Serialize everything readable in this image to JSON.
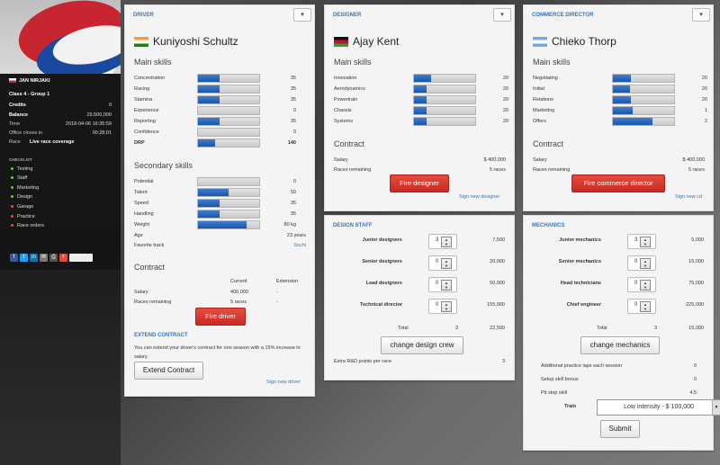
{
  "sidebar": {
    "manager_name": "JAN NIRJAKI",
    "rows": [
      {
        "k": "Class 4 - Group 1",
        "v": "",
        "bold": true
      },
      {
        "k": "Credits",
        "v": "0",
        "bold": true
      },
      {
        "k": "Balance",
        "v": "29,500,000",
        "bold": true
      },
      {
        "k": "Time",
        "v": "2018-04-06 16:35:59",
        "bold": false
      },
      {
        "k": "Office closes in",
        "v": "00:28:01",
        "bold": false
      },
      {
        "k": "Race",
        "v": "Live race coverage",
        "bold": false
      }
    ],
    "checklist_title": "CHECKLIST",
    "checklist": [
      "Testing",
      "Staff",
      "Marketing",
      "Design",
      "Garage",
      "Practice",
      "Race orders"
    ]
  },
  "driver": {
    "title": "DRIVER",
    "name": "Kuniyoshi Schultz",
    "main_skills_heading": "Main skills",
    "main_skills": [
      {
        "label": "Concentration",
        "value": "35",
        "fill": 0.35
      },
      {
        "label": "Racing",
        "value": "35",
        "fill": 0.35
      },
      {
        "label": "Stamina",
        "value": "35",
        "fill": 0.35
      },
      {
        "label": "Experience",
        "value": "0",
        "fill": 0
      },
      {
        "label": "Reporting",
        "value": "35",
        "fill": 0.35
      },
      {
        "label": "Confidence",
        "value": "0",
        "fill": 0
      },
      {
        "label": "DRP",
        "value": "140",
        "fill": 0.28,
        "bold": true
      }
    ],
    "secondary_heading": "Secondary skills",
    "secondary_skills": [
      {
        "label": "Potential",
        "value": "0",
        "fill": 0
      },
      {
        "label": "Talent",
        "value": "50",
        "fill": 0.5
      },
      {
        "label": "Speed",
        "value": "35",
        "fill": 0.35
      },
      {
        "label": "Handling",
        "value": "35",
        "fill": 0.35
      },
      {
        "label": "Weight",
        "value": "80 kg",
        "fill": 0.8
      }
    ],
    "age_label": "Age",
    "age_value": "23 years",
    "track_label": "Favorite track",
    "track_value": "Sochi",
    "contract_heading": "Contract",
    "contract_col_current": "Current",
    "contract_col_extension": "Extension",
    "salary_label": "Salary",
    "salary_current": "400,000",
    "salary_ext": "-",
    "races_label": "Races remaining",
    "races_current": "5 races",
    "races_ext": "-",
    "fire_label": "Fire driver",
    "extend_title": "EXTEND CONTRACT",
    "extend_text": "You can extend your driver's contract for one season with a 15% increase in salary.",
    "extend_button": "Extend Contract",
    "sign_link": "Sign new driver"
  },
  "designer": {
    "title": "DESIGNER",
    "name": "Ajay Kent",
    "main_skills_heading": "Main skills",
    "main_skills": [
      {
        "label": "Innovation",
        "value": "20",
        "fill": 0.28
      },
      {
        "label": "Aerodynamics",
        "value": "20",
        "fill": 0.2
      },
      {
        "label": "Powertrain",
        "value": "20",
        "fill": 0.2
      },
      {
        "label": "Chassis",
        "value": "20",
        "fill": 0.2
      },
      {
        "label": "Systems",
        "value": "20",
        "fill": 0.2
      }
    ],
    "contract_heading": "Contract",
    "salary_label": "Salary",
    "salary_value": "$ 400,000",
    "races_label": "Races remaining",
    "races_value": "5 races",
    "fire_label": "Fire designer",
    "sign_link": "Sign new designer"
  },
  "commerce": {
    "title": "COMMERCE DIRECTOR",
    "name": "Chieko Thorp",
    "main_skills_heading": "Main skills",
    "main_skills": [
      {
        "label": "Negotiating",
        "value": "20",
        "fill": 0.3
      },
      {
        "label": "Initial",
        "value": "20",
        "fill": 0.28
      },
      {
        "label": "Relations",
        "value": "20",
        "fill": 0.3
      },
      {
        "label": "Marketing",
        "value": "1",
        "fill": 0.32
      },
      {
        "label": "Offers",
        "value": "2",
        "fill": 0.65
      }
    ],
    "contract_heading": "Contract",
    "salary_label": "Salary",
    "salary_value": "$ 400,000",
    "races_label": "Races remaining",
    "races_value": "5 races",
    "fire_label": "Fire commerce director",
    "sign_link": "Sign new cd"
  },
  "design_staff": {
    "title": "DESIGN STAFF",
    "rows": [
      {
        "label": "Junior designers",
        "count": "3",
        "cost": "7,500"
      },
      {
        "label": "Senior designers",
        "count": "0",
        "cost": "20,000"
      },
      {
        "label": "Lead designers",
        "count": "0",
        "cost": "50,000"
      },
      {
        "label": "Technical director",
        "count": "0",
        "cost": "155,000"
      }
    ],
    "total_label": "Total",
    "total_count": "3",
    "total_cost": "22,500",
    "button": "change design crew",
    "extra_label": "Extra R&D points per race",
    "extra_value": "3"
  },
  "mechanics": {
    "title": "MECHANICS",
    "rows": [
      {
        "label": "Junior mechanics",
        "count": "3",
        "cost": "5,000"
      },
      {
        "label": "Senior mechanics",
        "count": "0",
        "cost": "15,000"
      },
      {
        "label": "Head technicians",
        "count": "0",
        "cost": "75,000"
      },
      {
        "label": "Chief engineer",
        "count": "0",
        "cost": "225,000"
      }
    ],
    "total_label": "Total",
    "total_count": "3",
    "total_cost": "15,000",
    "button": "change mechanics",
    "info": [
      {
        "label": "Additional practice laps each session",
        "value": "0"
      },
      {
        "label": "Setup skill bonus",
        "value": "0"
      },
      {
        "label": "Pit stop skill",
        "value": "4.5"
      }
    ],
    "train_label": "Train",
    "train_value": "Low intensity - $ 100,000",
    "submit": "Submit"
  },
  "colors": {
    "accent": "#2a79c6",
    "fire": "#d8372e",
    "bar": "#2863b8"
  }
}
